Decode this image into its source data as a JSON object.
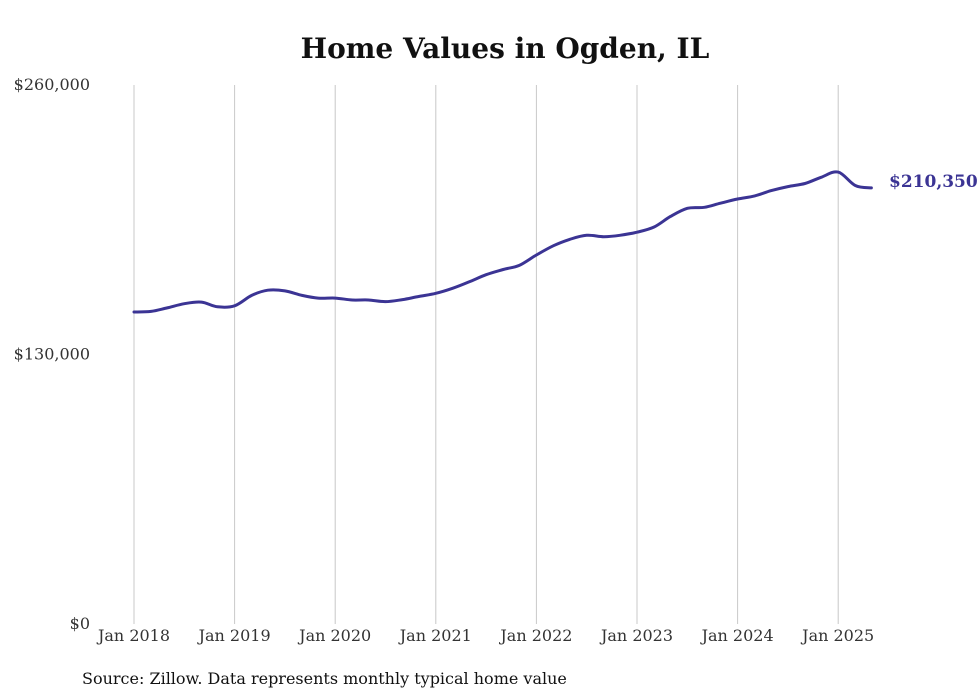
{
  "chart_data": {
    "type": "line",
    "title": "Home Values in Ogden, IL",
    "xlabel": "",
    "ylabel": "",
    "ylim": [
      0,
      260000
    ],
    "yticks": [
      {
        "value": 0,
        "label": "$0"
      },
      {
        "value": 130000,
        "label": "$130,000"
      },
      {
        "value": 260000,
        "label": "$260,000"
      }
    ],
    "xticks": [
      {
        "value": 2018.0,
        "label": "Jan 2018"
      },
      {
        "value": 2019.0,
        "label": "Jan 2019"
      },
      {
        "value": 2020.0,
        "label": "Jan 2020"
      },
      {
        "value": 2021.0,
        "label": "Jan 2021"
      },
      {
        "value": 2022.0,
        "label": "Jan 2022"
      },
      {
        "value": 2023.0,
        "label": "Jan 2023"
      },
      {
        "value": 2024.0,
        "label": "Jan 2024"
      },
      {
        "value": 2025.0,
        "label": "Jan 2025"
      }
    ],
    "xlim": [
      2017.0,
      2026.0
    ],
    "grid": "vertical",
    "line_color": "#3b3494",
    "series": [
      {
        "points": [
          [
            2018.0,
            150500
          ],
          [
            2018.17,
            150800
          ],
          [
            2018.33,
            152500
          ],
          [
            2018.5,
            154500
          ],
          [
            2018.67,
            155300
          ],
          [
            2018.83,
            153000
          ],
          [
            2019.0,
            153500
          ],
          [
            2019.17,
            158500
          ],
          [
            2019.33,
            161000
          ],
          [
            2019.5,
            160700
          ],
          [
            2019.67,
            158500
          ],
          [
            2019.83,
            157200
          ],
          [
            2020.0,
            157200
          ],
          [
            2020.17,
            156300
          ],
          [
            2020.33,
            156300
          ],
          [
            2020.5,
            155500
          ],
          [
            2020.67,
            156500
          ],
          [
            2020.83,
            158000
          ],
          [
            2021.0,
            159500
          ],
          [
            2021.17,
            162000
          ],
          [
            2021.33,
            165000
          ],
          [
            2021.5,
            168500
          ],
          [
            2021.67,
            171000
          ],
          [
            2021.83,
            173000
          ],
          [
            2022.0,
            178000
          ],
          [
            2022.17,
            182500
          ],
          [
            2022.33,
            185500
          ],
          [
            2022.5,
            187500
          ],
          [
            2022.67,
            186800
          ],
          [
            2022.83,
            187500
          ],
          [
            2023.0,
            189000
          ],
          [
            2023.17,
            191500
          ],
          [
            2023.33,
            196500
          ],
          [
            2023.5,
            200500
          ],
          [
            2023.67,
            201000
          ],
          [
            2023.83,
            203000
          ],
          [
            2024.0,
            205000
          ],
          [
            2024.17,
            206500
          ],
          [
            2024.33,
            209000
          ],
          [
            2024.5,
            211000
          ],
          [
            2024.67,
            212500
          ],
          [
            2024.83,
            215500
          ],
          [
            2025.0,
            218000
          ],
          [
            2025.17,
            211500
          ],
          [
            2025.33,
            210350
          ]
        ]
      }
    ],
    "end_label": "$210,350"
  },
  "source": "Source: Zillow. Data represents monthly typical home value"
}
